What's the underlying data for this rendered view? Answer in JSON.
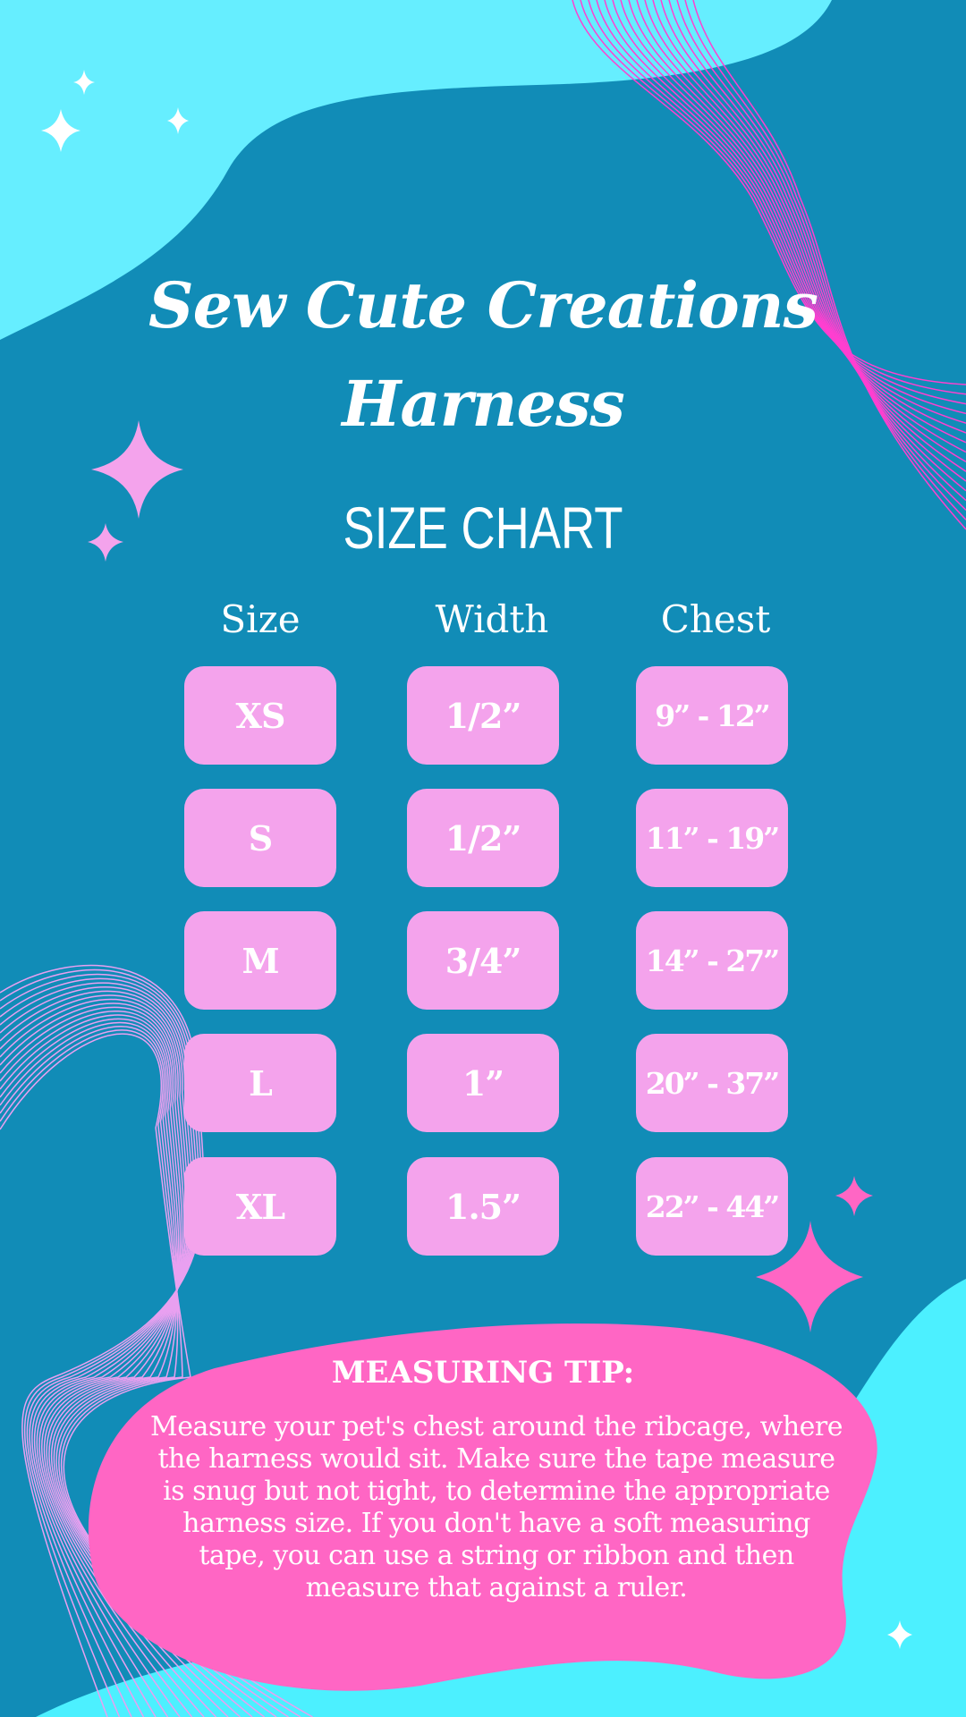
{
  "header": {
    "title_line1": "Sew Cute Creations",
    "title_line2": "Harness",
    "subtitle": "SIZE CHART"
  },
  "table": {
    "columns": [
      "Size",
      "Width",
      "Chest"
    ],
    "rows": [
      [
        "XS",
        "1/2”",
        "9” - 12”"
      ],
      [
        "S",
        "1/2”",
        "11” - 19”"
      ],
      [
        "M",
        "3/4”",
        "14” - 27”"
      ],
      [
        "L",
        "1”",
        "20” - 37”"
      ],
      [
        "XL",
        "1.5”",
        "22” - 44”"
      ]
    ]
  },
  "tip": {
    "title": "MEASURING TIP:",
    "body": "Measure your pet's chest around the ribcage, where the harness would sit. Make sure the tape measure is snug but not tight, to determine the appropriate harness size. If you don't have a soft measuring tape, you can use a string or ribbon and then measure that against a ruler."
  },
  "colors": {
    "background": "#118cb7",
    "light_cyan": "#66eeff",
    "cell_pink": "#f4a3ec",
    "tip_pink": "#ff66c4",
    "wave_magenta": "#ff3fd0"
  },
  "icons": [
    "sparkle-icon"
  ]
}
